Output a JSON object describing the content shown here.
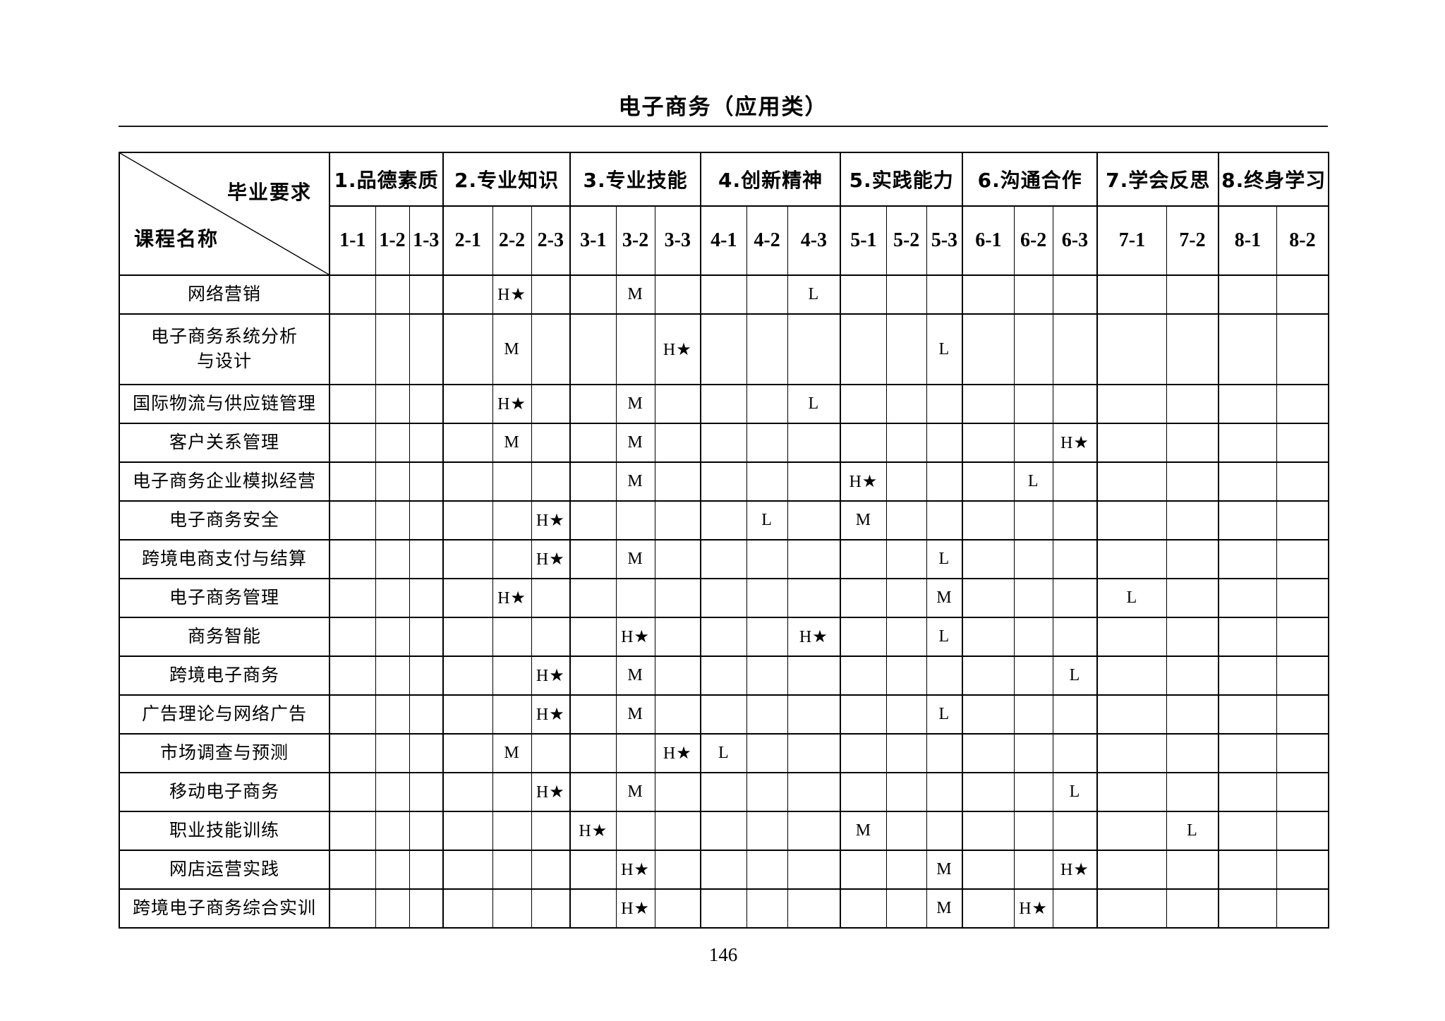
{
  "page": {
    "title": "电子商务（应用类）",
    "page_number": "146"
  },
  "table": {
    "corner": {
      "top_right": "毕业要求",
      "bottom_left": "课程名称"
    },
    "groups": [
      {
        "label": "1.品德素质",
        "subs": [
          "1-1",
          "1-2",
          "1-3"
        ]
      },
      {
        "label": "2.专业知识",
        "subs": [
          "2-1",
          "2-2",
          "2-3"
        ]
      },
      {
        "label": "3.专业技能",
        "subs": [
          "3-1",
          "3-2",
          "3-3"
        ]
      },
      {
        "label": "4.创新精神",
        "subs": [
          "4-1",
          "4-2",
          "4-3"
        ]
      },
      {
        "label": "5.实践能力",
        "subs": [
          "5-1",
          "5-2",
          "5-3"
        ]
      },
      {
        "label": "6.沟通合作",
        "subs": [
          "6-1",
          "6-2",
          "6-3"
        ]
      },
      {
        "label": "7.学会反思",
        "subs": [
          "7-1",
          "7-2"
        ]
      },
      {
        "label": "8.终身学习",
        "subs": [
          "8-1",
          "8-2"
        ]
      }
    ],
    "rows": [
      {
        "course": "网络营销",
        "cells": {
          "2-2": "H★",
          "3-2": "M",
          "4-3": "L"
        }
      },
      {
        "course": "电子商务系统分析\n与设计",
        "cells": {
          "2-2": "M",
          "3-3": "H★",
          "5-3": "L"
        }
      },
      {
        "course": "国际物流与供应链管理",
        "cells": {
          "2-2": "H★",
          "3-2": "M",
          "4-3": "L"
        }
      },
      {
        "course": "客户关系管理",
        "cells": {
          "2-2": "M",
          "3-2": "M",
          "6-3": "H★"
        }
      },
      {
        "course": "电子商务企业模拟经营",
        "cells": {
          "3-2": "M",
          "5-1": "H★",
          "6-2": "L"
        }
      },
      {
        "course": "电子商务安全",
        "cells": {
          "2-3": "H★",
          "4-2": "L",
          "5-1": "M"
        }
      },
      {
        "course": "跨境电商支付与结算",
        "cells": {
          "2-3": "H★",
          "3-2": "M",
          "5-3": "L"
        }
      },
      {
        "course": "电子商务管理",
        "cells": {
          "2-2": "H★",
          "5-3": "M",
          "7-1": "L"
        }
      },
      {
        "course": "商务智能",
        "cells": {
          "3-2": "H★",
          "4-3": "H★",
          "5-3": "L"
        }
      },
      {
        "course": "跨境电子商务",
        "cells": {
          "2-3": "H★",
          "3-2": "M",
          "6-3": "L"
        }
      },
      {
        "course": "广告理论与网络广告",
        "cells": {
          "2-3": "H★",
          "3-2": "M",
          "5-3": "L"
        }
      },
      {
        "course": "市场调查与预测",
        "cells": {
          "2-2": "M",
          "3-3": "H★",
          "4-1": "L"
        }
      },
      {
        "course": "移动电子商务",
        "cells": {
          "2-3": "H★",
          "3-2": "M",
          "6-3": "L"
        }
      },
      {
        "course": "职业技能训练",
        "cells": {
          "3-1": "H★",
          "5-1": "M",
          "7-2": "L"
        }
      },
      {
        "course": "网店运营实践",
        "cells": {
          "3-2": "H★",
          "5-3": "M",
          "6-3": "H★"
        }
      },
      {
        "course": "跨境电子商务综合实训",
        "cells": {
          "3-2": "H★",
          "5-3": "M",
          "6-2": "H★"
        }
      }
    ]
  }
}
